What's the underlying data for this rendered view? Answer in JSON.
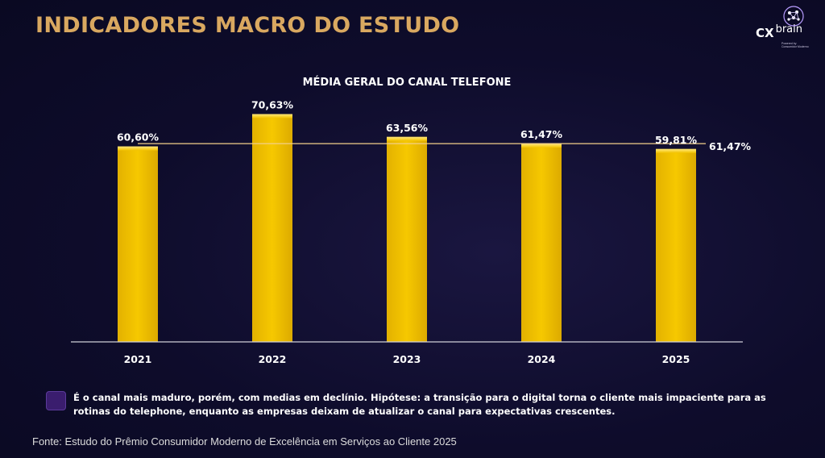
{
  "header": {
    "title": "INDICADORES MACRO DO ESTUDO",
    "logo_text_bold": "CX",
    "logo_text_light": "brain",
    "logo_small_text": "Powered by\nConsumidor Moderno"
  },
  "chart_data": {
    "type": "bar",
    "title": "MÉDIA GERAL DO CANAL TELEFONE",
    "categories": [
      "2021",
      "2022",
      "2023",
      "2024",
      "2025"
    ],
    "values": [
      60.6,
      70.63,
      63.56,
      61.47,
      59.81
    ],
    "value_labels": [
      "60,60%",
      "70,63%",
      "63,56%",
      "61,47%",
      "59,81%"
    ],
    "average": {
      "value": 61.47,
      "label": "61,47%"
    },
    "ylim": [
      0,
      75
    ],
    "grid": false,
    "legend": "none",
    "colors": {
      "bar": "#f2c200",
      "bar_highlight": "#ffd940",
      "average_line": "#f3d08a",
      "axis": "#cfcfd8"
    }
  },
  "note": {
    "text": "É o canal mais maduro, porém, com medias em declínio. Hipótese: a transição para o digital torna o cliente mais impaciente para as rotinas do telephone, enquanto as empresas deixam de atualizar o canal para expectativas crescentes."
  },
  "footer": {
    "source": "Fonte: Estudo do Prêmio Consumidor Moderno de Excelência em Serviços ao Cliente 2025"
  }
}
